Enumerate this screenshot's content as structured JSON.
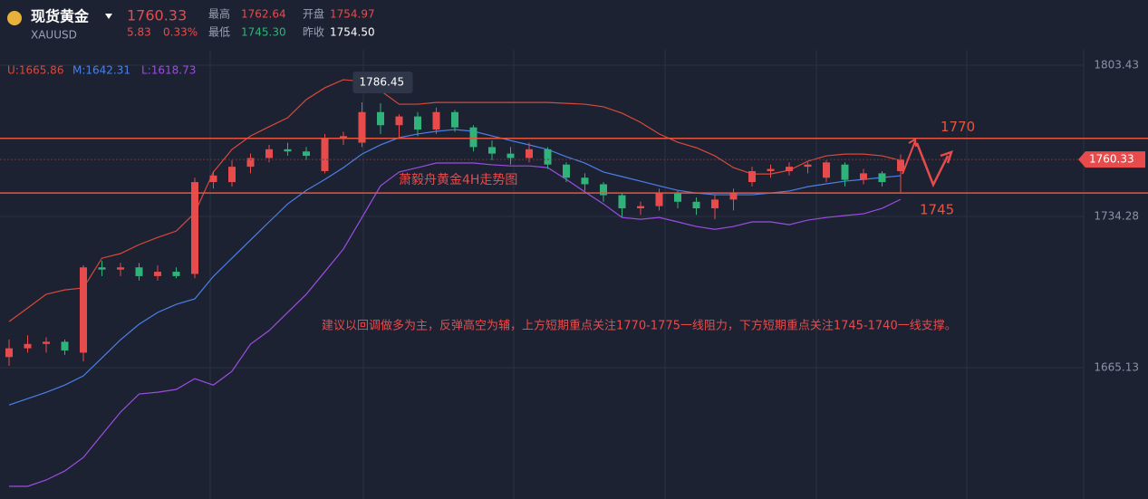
{
  "header": {
    "title": "现货黄金",
    "symbol": "XAUUSD",
    "price": "1760.33",
    "change": "5.83",
    "change_pct": "0.33%",
    "high_label": "最高",
    "high": "1762.64",
    "open_label": "开盘",
    "open": "1754.97",
    "low_label": "最低",
    "low": "1745.30",
    "prev_label": "昨收",
    "prev": "1754.50"
  },
  "chart_data": {
    "type": "candlestick",
    "title": "萧毅舟黄金4H走势图",
    "annotation": "建议以回调做多为主，反弹高空为辅，上方短期重点关注1770-1775一线阻力，下方短期重点关注1745-1740一线支撑。",
    "up_color": "#e84b4b",
    "down_color": "#2fb37a",
    "open": [
      1670,
      1674,
      1676,
      1677,
      1672,
      1711,
      1710,
      1711,
      1707,
      1709,
      1708,
      1750,
      1750,
      1757,
      1761,
      1765,
      1764,
      1755,
      1770,
      1768,
      1782,
      1776,
      1780,
      1774,
      1782,
      1775,
      1766,
      1763,
      1761,
      1765,
      1758,
      1752,
      1749,
      1744,
      1738,
      1739,
      1745,
      1741,
      1738,
      1742,
      1750,
      1755,
      1755,
      1757,
      1752,
      1758,
      1751,
      1754,
      1754.97
    ],
    "high": [
      1678,
      1680,
      1679,
      1678,
      1712,
      1714,
      1713,
      1713,
      1712,
      1711,
      1752,
      1755,
      1760,
      1763,
      1767,
      1768,
      1766,
      1772,
      1773,
      1786.45,
      1786,
      1781,
      1782,
      1784,
      1783,
      1776,
      1769,
      1766,
      1768,
      1766,
      1759,
      1754,
      1750,
      1745,
      1741,
      1747,
      1746,
      1743,
      1744,
      1747,
      1757,
      1758,
      1759,
      1759,
      1760,
      1759,
      1756,
      1755,
      1762.64
    ],
    "low": [
      1666,
      1672,
      1672,
      1671,
      1668,
      1707,
      1707,
      1705,
      1705,
      1706,
      1706,
      1747,
      1748,
      1754,
      1759,
      1762,
      1760,
      1754,
      1767,
      1766,
      1772,
      1770,
      1771,
      1772,
      1773,
      1764,
      1760,
      1758,
      1759,
      1756,
      1750,
      1746,
      1741,
      1734,
      1735,
      1737,
      1738,
      1735,
      1733,
      1737,
      1748,
      1752,
      1753,
      1754,
      1750,
      1748,
      1749,
      1748,
      1745.3
    ],
    "close": [
      1674,
      1676,
      1677,
      1673,
      1711,
      1710,
      1711,
      1707,
      1709,
      1707,
      1750,
      1753,
      1757,
      1761,
      1765,
      1764,
      1762,
      1770,
      1771,
      1782,
      1776,
      1780,
      1774,
      1782,
      1775,
      1766,
      1763,
      1761,
      1765,
      1758,
      1752,
      1749,
      1744,
      1738,
      1739,
      1745,
      1741,
      1738,
      1742,
      1745,
      1755,
      1756,
      1757,
      1758,
      1759,
      1751,
      1754,
      1750,
      1760.33
    ],
    "series": [
      {
        "name": "U",
        "label": "U:1665.86",
        "color": "#d9493a",
        "values": [
          1686.2,
          1692.4,
          1698.7,
          1700.7,
          1701.6,
          1715.2,
          1717.3,
          1721.4,
          1724.7,
          1727.6,
          1735.9,
          1754.6,
          1764.9,
          1771.1,
          1775.3,
          1779.4,
          1787.7,
          1793.1,
          1796.8,
          1796.0,
          1791.8,
          1785.6,
          1785.6,
          1786.4,
          1786.4,
          1786.4,
          1786.4,
          1786.4,
          1786.4,
          1786.4,
          1786.0,
          1785.6,
          1784.4,
          1781.5,
          1777.3,
          1772.0,
          1768.2,
          1765.7,
          1762.0,
          1756.6,
          1753.7,
          1753.7,
          1755.4,
          1759.5,
          1762.0,
          1762.8,
          1762.8,
          1762.0,
          1759.9
        ]
      },
      {
        "name": "M",
        "label": "M:1642.31",
        "color": "#4a80e8",
        "values": [
          1648.1,
          1651.0,
          1653.9,
          1657.2,
          1661.4,
          1669.6,
          1677.9,
          1685.0,
          1690.4,
          1694.1,
          1696.6,
          1706.9,
          1715.2,
          1723.5,
          1731.8,
          1740.0,
          1746.2,
          1751.2,
          1756.6,
          1762.8,
          1767.0,
          1770.3,
          1772.0,
          1773.2,
          1774.0,
          1773.2,
          1771.1,
          1769.0,
          1767.0,
          1764.9,
          1761.6,
          1758.7,
          1754.6,
          1752.5,
          1750.4,
          1748.3,
          1746.2,
          1745.0,
          1744.2,
          1744.2,
          1744.2,
          1745.0,
          1745.9,
          1747.9,
          1749.2,
          1750.4,
          1751.2,
          1752.1,
          1752.9
        ]
      },
      {
        "name": "L",
        "label": "L:1618.73",
        "color": "#9b4de0",
        "values": [
          1610.9,
          1610.9,
          1613.8,
          1617.9,
          1624.1,
          1634.5,
          1644.8,
          1653.1,
          1653.9,
          1655.2,
          1660.1,
          1657.2,
          1663.5,
          1675.9,
          1682.1,
          1690.4,
          1698.7,
          1709.0,
          1719.4,
          1733.8,
          1748.3,
          1754.6,
          1756.6,
          1758.7,
          1758.7,
          1758.7,
          1757.9,
          1757.4,
          1757.4,
          1756.6,
          1751.2,
          1745.5,
          1740.0,
          1733.8,
          1733.0,
          1733.8,
          1731.8,
          1729.7,
          1728.4,
          1729.7,
          1731.8,
          1731.8,
          1730.5,
          1732.6,
          1733.8,
          1734.7,
          1735.5,
          1738.0,
          1742.1
        ]
      }
    ],
    "levels": [
      1770,
      1745
    ],
    "level_color": "#e8553e",
    "ylim": [
      1605.1,
      1833.24
    ],
    "yticks": [
      1803.43,
      1734.28,
      1665.13
    ],
    "grid": true
  }
}
